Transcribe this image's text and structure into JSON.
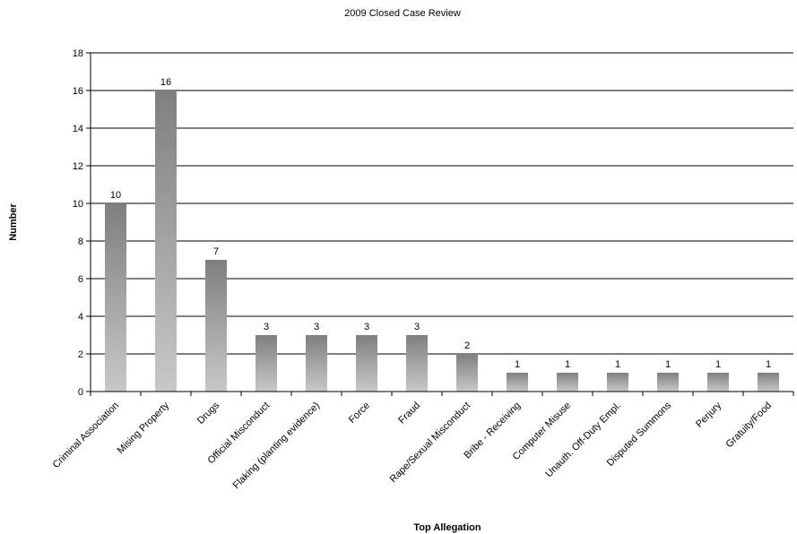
{
  "chart_data": {
    "type": "bar",
    "title": "2009 Closed Case Review",
    "xlabel": "Top Allegation",
    "ylabel": "Number",
    "ylim": [
      0,
      18
    ],
    "yticks": [
      0,
      2,
      4,
      6,
      8,
      10,
      12,
      14,
      16,
      18
    ],
    "grid": true,
    "legend": "none",
    "categories": [
      "Criminal Association",
      "Mising Property",
      "Drugs",
      "Official Misconduct",
      "Flaking (planting evidence)",
      "Force",
      "Fraud",
      "Rape/Sexual Misconduct",
      "Bribe - Receiving",
      "Computer Misuse",
      "Unauth. Off-Duty Empl.",
      "Disputed Summons",
      "Perjury",
      "Gratuity/Food"
    ],
    "values": [
      10,
      16,
      7,
      3,
      3,
      3,
      3,
      2,
      1,
      1,
      1,
      1,
      1,
      1
    ],
    "colors": {
      "bar_top": "#7f7f7f",
      "bar_bottom": "#c8c8c8",
      "grid": "#000000"
    }
  }
}
